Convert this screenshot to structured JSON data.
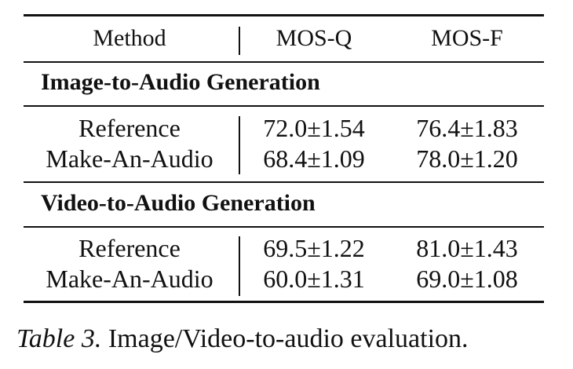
{
  "table": {
    "headers": {
      "method": "Method",
      "mos_q": "MOS-Q",
      "mos_f": "MOS-F"
    },
    "sections": [
      {
        "title": "Image-to-Audio Generation",
        "rows": [
          {
            "method": "Reference",
            "mos_q": "72.0±1.54",
            "mos_f": "76.4±1.83"
          },
          {
            "method": "Make-An-Audio",
            "mos_q": "68.4±1.09",
            "mos_f": "78.0±1.20"
          }
        ]
      },
      {
        "title": "Video-to-Audio Generation",
        "rows": [
          {
            "method": "Reference",
            "mos_q": "69.5±1.22",
            "mos_f": "81.0±1.43"
          },
          {
            "method": "Make-An-Audio",
            "mos_q": "60.0±1.31",
            "mos_f": "69.0±1.08"
          }
        ]
      }
    ]
  },
  "caption": {
    "label": "Table 3.",
    "text": "Image/Video-to-audio evaluation."
  }
}
